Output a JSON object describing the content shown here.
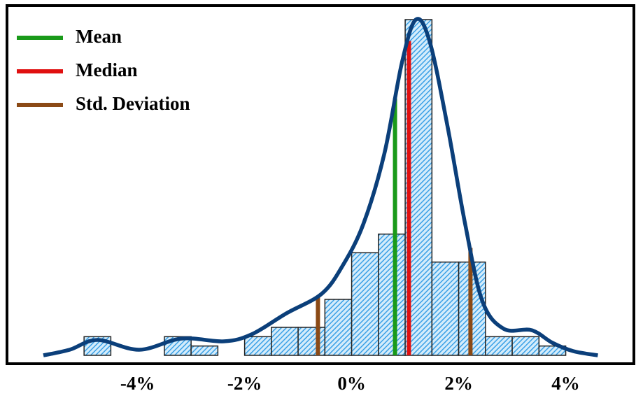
{
  "chart_data": {
    "type": "histogram",
    "bins": [
      -5,
      -4.5,
      -4,
      -3.5,
      -3,
      -2.5,
      -2,
      -1.5,
      -1,
      -0.5,
      0,
      0.5,
      1,
      1.5,
      2,
      2.5,
      3,
      3.5,
      4
    ],
    "counts": [
      2,
      0,
      0,
      2,
      1,
      0,
      2,
      3,
      3,
      6,
      11,
      13,
      36,
      10,
      10,
      2,
      2,
      1
    ],
    "color": "#3aa0e6",
    "kde": {
      "color": "#0b3f7a",
      "x": [
        -5.76,
        -5.27,
        -4.75,
        -3.97,
        -3.18,
        -2.39,
        -1.87,
        -1.22,
        -0.56,
        -0.17,
        0.22,
        0.61,
        0.94,
        1.2,
        1.46,
        1.79,
        2.12,
        2.44,
        2.84,
        3.36,
        3.75,
        4.14,
        4.6
      ],
      "y": [
        0,
        0.6,
        1.65,
        0.6,
        1.8,
        1.5,
        2.25,
        4.5,
        6.6,
        9.6,
        14.1,
        21.6,
        31.4,
        36,
        33.6,
        24.6,
        14.1,
        5.85,
        2.85,
        2.7,
        1.35,
        0.45,
        0
      ]
    },
    "lines": [
      {
        "name": "Mean",
        "color": "#1a9a1a",
        "x": [
          0.81
        ]
      },
      {
        "name": "Median",
        "color": "#e01010",
        "x": [
          1.07
        ]
      },
      {
        "name": "Std. Deviation",
        "color": "#8b4a16",
        "x": [
          -0.63,
          2.22
        ]
      }
    ],
    "legend": "upper left",
    "xlim": [
      -6.44,
      5.3
    ],
    "ylim": [
      -0.9,
      37.5
    ],
    "xticks": [
      {
        "value": -4,
        "label": "-4%"
      },
      {
        "value": -2,
        "label": "-2%"
      },
      {
        "value": 0,
        "label": "0%"
      },
      {
        "value": 2,
        "label": "2%"
      },
      {
        "value": 4,
        "label": "4%"
      }
    ]
  }
}
